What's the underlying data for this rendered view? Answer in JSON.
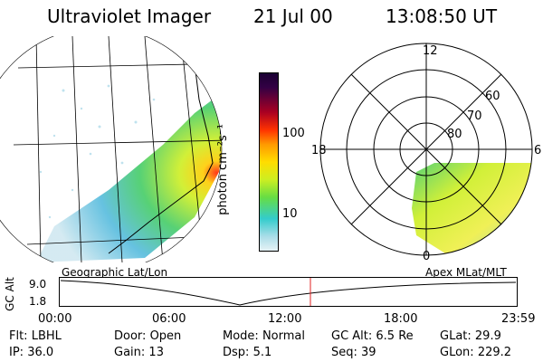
{
  "header": {
    "instrument": "Ultraviolet Imager",
    "date": "21 Jul 00",
    "time": "13:08:50 UT"
  },
  "colorbar": {
    "unit_label": "photon cm⁻²s⁻¹",
    "ticks": [
      "100",
      "10"
    ]
  },
  "polar": {
    "mlt_labels": [
      "12",
      "18",
      "6",
      "0"
    ],
    "lat_labels": [
      "60",
      "70",
      "80"
    ]
  },
  "captions": {
    "left": "Geographic Lat/Lon",
    "right": "Apex MLat/MLT"
  },
  "timeline": {
    "y_label": "GC Alt",
    "y_ticks": [
      "9.0",
      "1.8"
    ],
    "x_ticks": [
      "00:00",
      "06:00",
      "12:00",
      "18:00",
      "23:59"
    ],
    "current_time": "13:08"
  },
  "status": {
    "rows": [
      [
        {
          "label": "Flt:",
          "value": "LBHL"
        },
        {
          "label": "Door:",
          "value": "Open"
        },
        {
          "label": "Mode:",
          "value": "Normal"
        },
        {
          "label": "GC Alt:",
          "value": "6.5 Re"
        },
        {
          "label": "GLat:",
          "value": "29.9"
        }
      ],
      [
        {
          "label": "IP:",
          "value": "36.0"
        },
        {
          "label": "Gain:",
          "value": "13"
        },
        {
          "label": "Dsp:",
          "value": "5.1"
        },
        {
          "label": "Seq:",
          "value": "39"
        },
        {
          "label": "GLon:",
          "value": "229.2"
        }
      ]
    ]
  },
  "colors": {
    "grid": "#000000",
    "marker": "#e02020"
  }
}
